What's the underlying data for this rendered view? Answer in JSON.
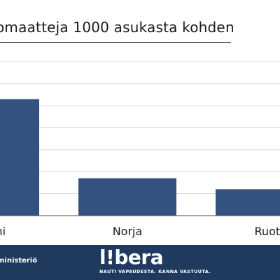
{
  "chart_data": {
    "type": "bar",
    "title": "omaatteja 1000 asukasta kohden",
    "categories": [
      "mi",
      "Norja",
      "Ruots"
    ],
    "values": [
      5.3,
      1.7,
      1.2
    ],
    "ylim": [
      0,
      7.2
    ],
    "grid": true,
    "xlabel": "",
    "ylabel": "",
    "colors": {
      "bar": "#34527f",
      "grid": "#d9d9d9",
      "axis": "#4a4a4a"
    }
  },
  "footer": {
    "ministry_text": "ministeriö",
    "logo_text": "l!bera",
    "tagline": "NAUTI VAPAUDESTA. KANNA VASTUUTA.",
    "background": "#1f3a5e"
  }
}
